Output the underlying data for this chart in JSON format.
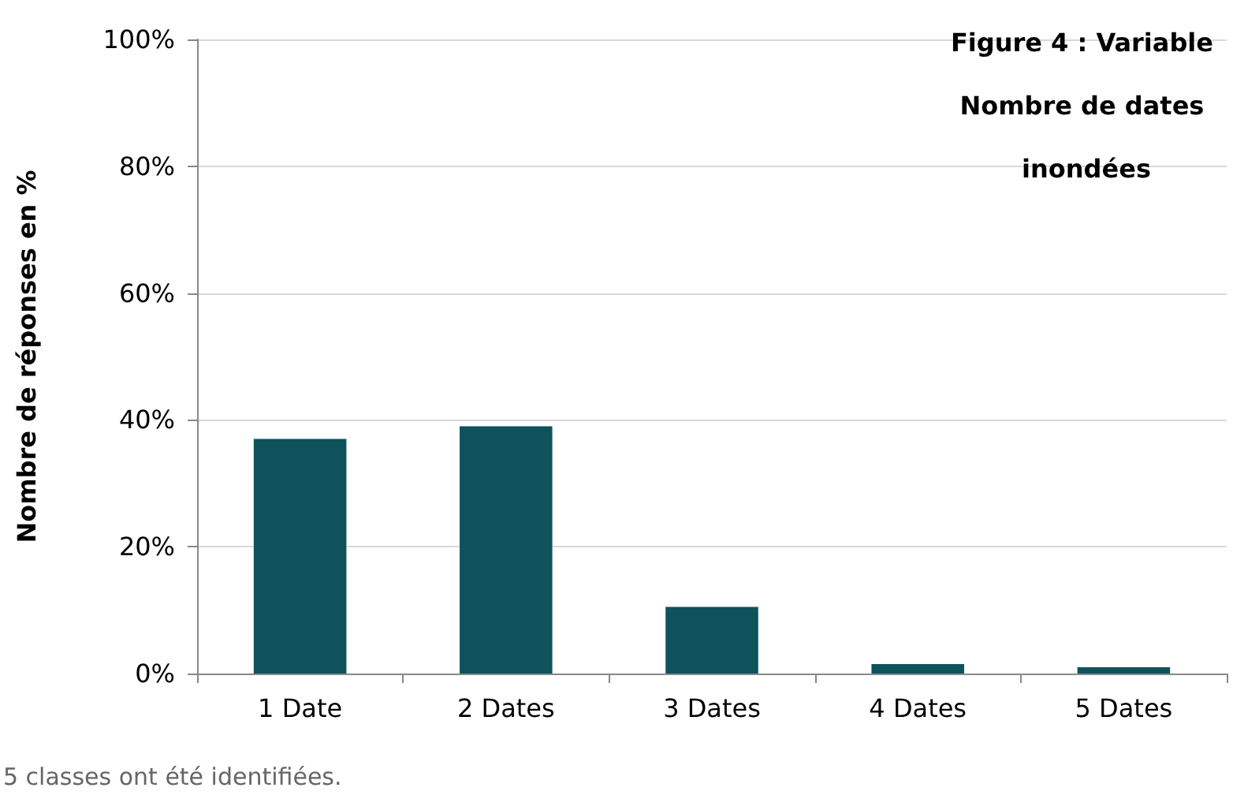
{
  "chart_data": {
    "type": "bar",
    "title": "Figure 4 : Variable Nombre de dates inondées",
    "ylabel": "Nombre de réponses en %",
    "categories": [
      "1 Date",
      "2 Dates",
      "3 Dates",
      "4 Dates",
      "5 Dates"
    ],
    "values": [
      37,
      39,
      10.5,
      1.5,
      1
    ],
    "color": "#0e535c",
    "ylim": [
      0,
      100
    ],
    "yticks": [
      {
        "value": 0,
        "label": "0%"
      },
      {
        "value": 20,
        "label": "20%"
      },
      {
        "value": 40,
        "label": "40%"
      },
      {
        "value": 60,
        "label": "60%"
      },
      {
        "value": 80,
        "label": "80%"
      },
      {
        "value": 100,
        "label": "100%"
      }
    ],
    "grid": "y",
    "annotations": [
      "5 classes ont été identifiées."
    ]
  }
}
